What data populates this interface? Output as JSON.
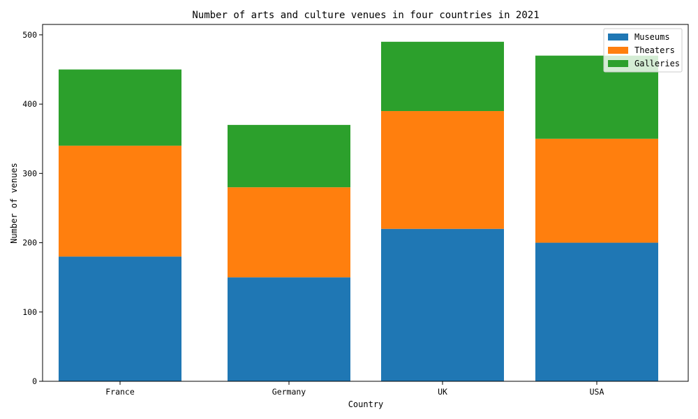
{
  "chart_data": {
    "type": "bar",
    "stacked": true,
    "title": "Number of arts and culture venues in four countries in 2021",
    "xlabel": "Country",
    "ylabel": "Number of venues",
    "categories": [
      "France",
      "Germany",
      "UK",
      "USA"
    ],
    "series": [
      {
        "name": "Museums",
        "values": [
          180,
          150,
          220,
          200
        ],
        "color": "#1f77b4"
      },
      {
        "name": "Theaters",
        "values": [
          160,
          130,
          170,
          150
        ],
        "color": "#ff7f0e"
      },
      {
        "name": "Galleries",
        "values": [
          110,
          90,
          100,
          120
        ],
        "color": "#2ca02c"
      }
    ],
    "ylim": [
      0,
      515
    ],
    "yticks": [
      0,
      100,
      200,
      300,
      400,
      500
    ],
    "grid": false,
    "legend_position": "top-right"
  }
}
